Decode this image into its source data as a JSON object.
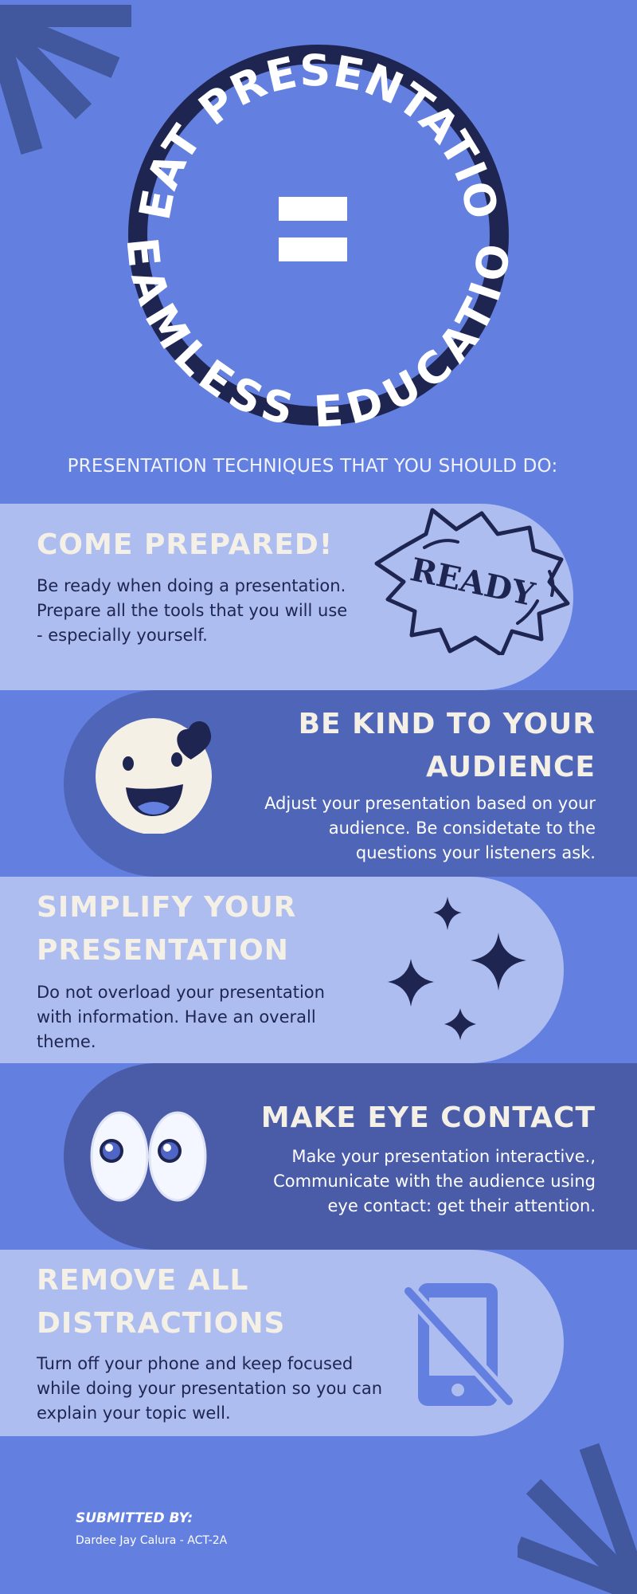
{
  "badge": {
    "top_arc_text": "NEAT PRESENTATION",
    "bottom_arc_text": "SEAMLESS EDUCATION",
    "symbol": "equals-sign"
  },
  "headline": "PRESENTATION TECHNIQUES THAT YOU SHOULD DO:",
  "cards": [
    {
      "title": "COME PREPARED!",
      "text": [
        "Be ready when doing a presentation.",
        "Prepare all the tools that you will use",
        "- especially yourself."
      ],
      "sticker": "READY",
      "icon": "ready-burst-icon"
    },
    {
      "title": [
        "BE KIND TO YOUR",
        "AUDIENCE"
      ],
      "text": [
        "Adjust your presentation based on your",
        "audience. Be considetate to the",
        "questions your listeners ask."
      ],
      "icon": "smiley-heart-icon"
    },
    {
      "title": [
        "SIMPLIFY YOUR",
        "PRESENTATION"
      ],
      "text": [
        "Do not overload your presentation",
        "with information. Have an overall",
        "theme."
      ],
      "icon": "sparkles-icon"
    },
    {
      "title": "MAKE EYE CONTACT",
      "text": [
        "Make your presentation interactive.,",
        "Communicate with the audience using",
        "eye contact: get their attention."
      ],
      "icon": "eyes-icon"
    },
    {
      "title": [
        "REMOVE ALL",
        "DISTRACTIONS"
      ],
      "text": [
        "Turn off your phone and keep focused",
        "while doing your presentation so you can",
        "explain your topic well."
      ],
      "icon": "no-phone-icon"
    }
  ],
  "footer": {
    "submitted_label": "SUBMITTED BY:",
    "name": "Dardee Jay Calura - ACT-2A"
  },
  "colors": {
    "background": "#6380e0",
    "light_pill": "#aebdf0",
    "dark_pill_1": "#4f65b7",
    "dark_pill_2": "#4a5ca8",
    "navy": "#1e2550",
    "cream": "#f4f0e6"
  }
}
